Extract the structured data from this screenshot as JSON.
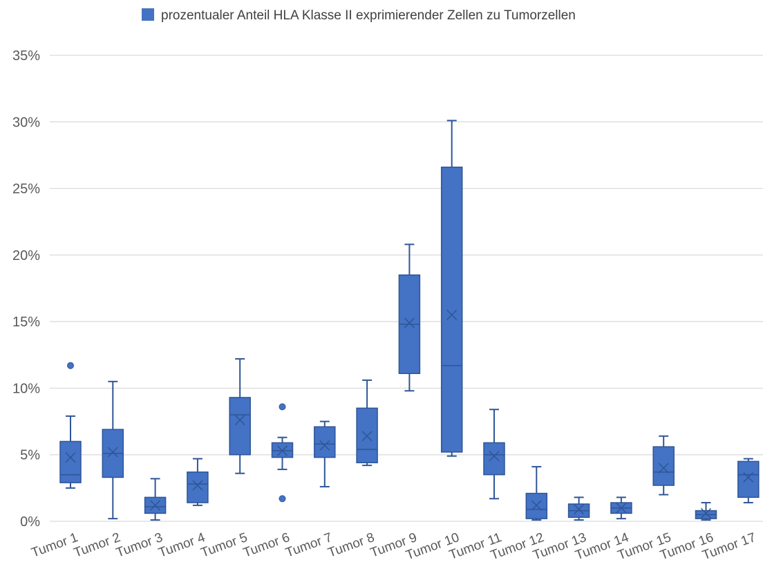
{
  "chart_data": {
    "type": "boxplot",
    "legend": {
      "label": "prozentualer Anteil HLA Klasse II exprimierender Zellen zu Tumorzellen",
      "color": "#4472C4",
      "placement": "top"
    },
    "y_axis": {
      "range": [
        0,
        35
      ],
      "ticks": [
        0,
        5,
        10,
        15,
        20,
        25,
        30,
        35
      ],
      "tick_labels": [
        "0%",
        "5%",
        "10%",
        "15%",
        "20%",
        "25%",
        "30%",
        "35%"
      ],
      "gridlines": true
    },
    "colors": {
      "box_fill": "#4472C4",
      "box_stroke": "#2F5597",
      "grid": "#D9D9D9"
    },
    "categories": [
      "Tumor 1",
      "Tumor 2",
      "Tumor 3",
      "Tumor 4",
      "Tumor 5",
      "Tumor 6",
      "Tumor 7",
      "Tumor 8",
      "Tumor 9",
      "Tumor 10",
      "Tumor 11",
      "Tumor 12",
      "Tumor 13",
      "Tumor 14",
      "Tumor 15",
      "Tumor 16",
      "Tumor 17"
    ],
    "boxes": [
      {
        "min": 2.5,
        "q1": 2.9,
        "median": 3.5,
        "q3": 6.0,
        "max": 7.9,
        "mean": 4.8,
        "outliers": [
          11.7
        ]
      },
      {
        "min": 0.2,
        "q1": 3.3,
        "median": 5.1,
        "q3": 6.9,
        "max": 10.5,
        "mean": 5.2,
        "outliers": []
      },
      {
        "min": 0.1,
        "q1": 0.6,
        "median": 1.1,
        "q3": 1.8,
        "max": 3.2,
        "mean": 1.2,
        "outliers": []
      },
      {
        "min": 1.2,
        "q1": 1.4,
        "median": 2.8,
        "q3": 3.7,
        "max": 4.7,
        "mean": 2.7,
        "outliers": []
      },
      {
        "min": 3.6,
        "q1": 5.0,
        "median": 8.0,
        "q3": 9.3,
        "max": 12.2,
        "mean": 7.6,
        "outliers": []
      },
      {
        "min": 3.9,
        "q1": 4.8,
        "median": 5.3,
        "q3": 5.9,
        "max": 6.3,
        "mean": 5.3,
        "outliers": [
          8.6,
          1.7
        ]
      },
      {
        "min": 2.6,
        "q1": 4.8,
        "median": 5.8,
        "q3": 7.1,
        "max": 7.5,
        "mean": 5.7,
        "outliers": []
      },
      {
        "min": 4.2,
        "q1": 4.4,
        "median": 5.4,
        "q3": 8.5,
        "max": 10.6,
        "mean": 6.4,
        "outliers": []
      },
      {
        "min": 9.8,
        "q1": 11.1,
        "median": 14.8,
        "q3": 18.5,
        "max": 20.8,
        "mean": 14.9,
        "outliers": []
      },
      {
        "min": 4.9,
        "q1": 5.2,
        "median": 11.7,
        "q3": 26.6,
        "max": 30.1,
        "mean": 15.5,
        "outliers": []
      },
      {
        "min": 1.7,
        "q1": 3.5,
        "median": 5.0,
        "q3": 5.9,
        "max": 8.4,
        "mean": 4.9,
        "outliers": []
      },
      {
        "min": 0.1,
        "q1": 0.2,
        "median": 0.9,
        "q3": 2.1,
        "max": 4.1,
        "mean": 1.2,
        "outliers": []
      },
      {
        "min": 0.1,
        "q1": 0.3,
        "median": 0.8,
        "q3": 1.3,
        "max": 1.8,
        "mean": 0.9,
        "outliers": []
      },
      {
        "min": 0.2,
        "q1": 0.6,
        "median": 1.0,
        "q3": 1.4,
        "max": 1.8,
        "mean": 1.0,
        "outliers": []
      },
      {
        "min": 2.0,
        "q1": 2.7,
        "median": 3.7,
        "q3": 5.6,
        "max": 6.4,
        "mean": 4.0,
        "outliers": []
      },
      {
        "min": 0.1,
        "q1": 0.2,
        "median": 0.5,
        "q3": 0.8,
        "max": 1.4,
        "mean": 0.6,
        "outliers": []
      },
      {
        "min": 1.4,
        "q1": 1.8,
        "median": 3.5,
        "q3": 4.5,
        "max": 4.7,
        "mean": 3.3,
        "outliers": []
      }
    ]
  }
}
